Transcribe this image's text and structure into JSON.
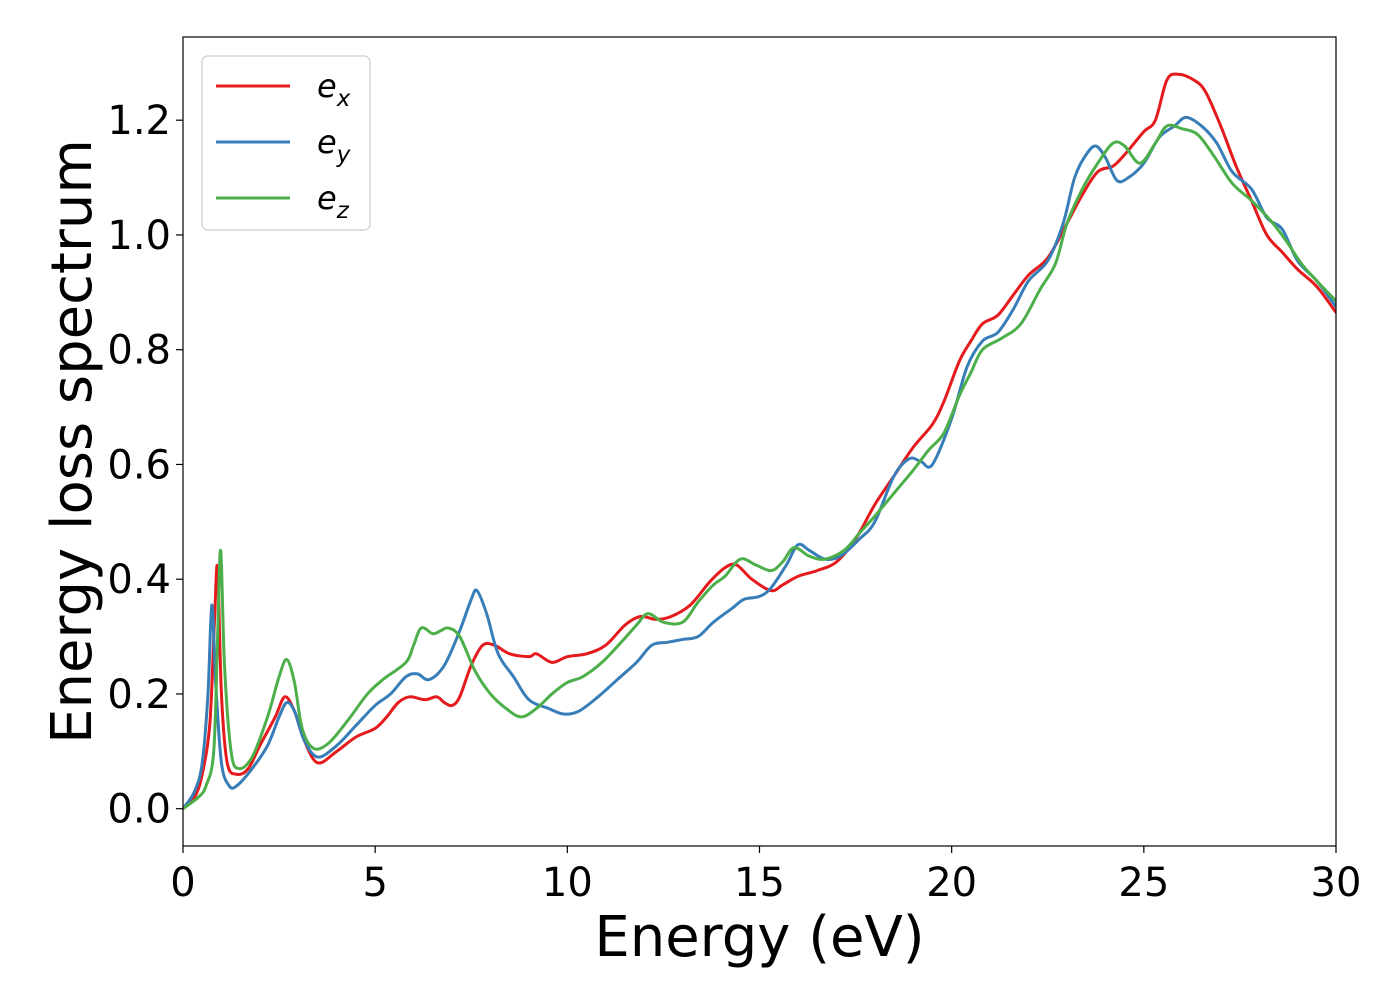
{
  "chart_data": {
    "type": "line",
    "title": "",
    "xlabel": "Energy (eV)",
    "ylabel": "Energy loss spectrum",
    "xlim": [
      0,
      30
    ],
    "ylim": [
      -0.065,
      1.345
    ],
    "xticks": [
      0,
      5,
      10,
      15,
      20,
      25,
      30
    ],
    "yticks": [
      0.0,
      0.2,
      0.4,
      0.6,
      0.8,
      1.0,
      1.2
    ],
    "xtick_labels": [
      "0",
      "5",
      "10",
      "15",
      "20",
      "25",
      "30"
    ],
    "ytick_labels": [
      "0.0",
      "0.2",
      "0.4",
      "0.6",
      "0.8",
      "1.0",
      "1.2"
    ],
    "grid": false,
    "legend_position": "top-left",
    "series": [
      {
        "name": "e_x",
        "label_base": "e",
        "label_sub": "x",
        "color": "#e41a1c",
        "points": [
          [
            0,
            0.0
          ],
          [
            0.3,
            0.02
          ],
          [
            0.5,
            0.06
          ],
          [
            0.7,
            0.15
          ],
          [
            0.82,
            0.33
          ],
          [
            0.9,
            0.42
          ],
          [
            1.0,
            0.2
          ],
          [
            1.15,
            0.08
          ],
          [
            1.4,
            0.06
          ],
          [
            1.7,
            0.07
          ],
          [
            2.0,
            0.11
          ],
          [
            2.4,
            0.16
          ],
          [
            2.65,
            0.195
          ],
          [
            2.9,
            0.17
          ],
          [
            3.15,
            0.12
          ],
          [
            3.5,
            0.08
          ],
          [
            4.0,
            0.1
          ],
          [
            4.5,
            0.125
          ],
          [
            5.0,
            0.14
          ],
          [
            5.3,
            0.16
          ],
          [
            5.6,
            0.185
          ],
          [
            5.9,
            0.195
          ],
          [
            6.3,
            0.19
          ],
          [
            6.6,
            0.195
          ],
          [
            6.8,
            0.185
          ],
          [
            7.0,
            0.18
          ],
          [
            7.2,
            0.195
          ],
          [
            7.5,
            0.25
          ],
          [
            7.8,
            0.285
          ],
          [
            8.1,
            0.285
          ],
          [
            8.5,
            0.27
          ],
          [
            9.0,
            0.265
          ],
          [
            9.2,
            0.27
          ],
          [
            9.6,
            0.255
          ],
          [
            10.0,
            0.265
          ],
          [
            10.5,
            0.27
          ],
          [
            11.0,
            0.285
          ],
          [
            11.5,
            0.32
          ],
          [
            11.9,
            0.335
          ],
          [
            12.3,
            0.33
          ],
          [
            12.7,
            0.335
          ],
          [
            13.2,
            0.355
          ],
          [
            13.7,
            0.395
          ],
          [
            14.1,
            0.42
          ],
          [
            14.4,
            0.425
          ],
          [
            14.8,
            0.4
          ],
          [
            15.3,
            0.38
          ],
          [
            15.6,
            0.39
          ],
          [
            16.0,
            0.405
          ],
          [
            16.5,
            0.415
          ],
          [
            17.0,
            0.43
          ],
          [
            17.5,
            0.47
          ],
          [
            18.0,
            0.53
          ],
          [
            18.5,
            0.58
          ],
          [
            19.0,
            0.63
          ],
          [
            19.5,
            0.67
          ],
          [
            19.8,
            0.71
          ],
          [
            20.2,
            0.78
          ],
          [
            20.5,
            0.815
          ],
          [
            20.8,
            0.845
          ],
          [
            21.2,
            0.86
          ],
          [
            21.6,
            0.895
          ],
          [
            22.0,
            0.93
          ],
          [
            22.5,
            0.96
          ],
          [
            23.0,
            1.02
          ],
          [
            23.4,
            1.07
          ],
          [
            23.8,
            1.11
          ],
          [
            24.2,
            1.12
          ],
          [
            24.5,
            1.14
          ],
          [
            25.0,
            1.18
          ],
          [
            25.3,
            1.2
          ],
          [
            25.6,
            1.27
          ],
          [
            25.9,
            1.28
          ],
          [
            26.3,
            1.27
          ],
          [
            26.6,
            1.25
          ],
          [
            27.0,
            1.19
          ],
          [
            27.4,
            1.12
          ],
          [
            27.8,
            1.06
          ],
          [
            28.2,
            1.0
          ],
          [
            28.6,
            0.97
          ],
          [
            29.0,
            0.94
          ],
          [
            29.5,
            0.91
          ],
          [
            30.0,
            0.865
          ]
        ]
      },
      {
        "name": "e_y",
        "label_base": "e",
        "label_sub": "y",
        "color": "#377eb8",
        "points": [
          [
            0,
            0.0
          ],
          [
            0.3,
            0.03
          ],
          [
            0.5,
            0.08
          ],
          [
            0.65,
            0.2
          ],
          [
            0.75,
            0.355
          ],
          [
            0.85,
            0.22
          ],
          [
            1.0,
            0.08
          ],
          [
            1.2,
            0.04
          ],
          [
            1.4,
            0.04
          ],
          [
            1.8,
            0.07
          ],
          [
            2.2,
            0.11
          ],
          [
            2.5,
            0.16
          ],
          [
            2.7,
            0.185
          ],
          [
            2.9,
            0.17
          ],
          [
            3.15,
            0.12
          ],
          [
            3.5,
            0.09
          ],
          [
            4.0,
            0.11
          ],
          [
            4.5,
            0.145
          ],
          [
            5.0,
            0.18
          ],
          [
            5.4,
            0.2
          ],
          [
            5.8,
            0.23
          ],
          [
            6.1,
            0.235
          ],
          [
            6.4,
            0.225
          ],
          [
            6.8,
            0.25
          ],
          [
            7.2,
            0.31
          ],
          [
            7.5,
            0.365
          ],
          [
            7.65,
            0.38
          ],
          [
            7.9,
            0.34
          ],
          [
            8.2,
            0.27
          ],
          [
            8.6,
            0.23
          ],
          [
            9.0,
            0.19
          ],
          [
            9.5,
            0.175
          ],
          [
            9.9,
            0.165
          ],
          [
            10.3,
            0.17
          ],
          [
            10.8,
            0.195
          ],
          [
            11.3,
            0.225
          ],
          [
            11.8,
            0.255
          ],
          [
            12.2,
            0.285
          ],
          [
            12.6,
            0.29
          ],
          [
            13.0,
            0.295
          ],
          [
            13.4,
            0.3
          ],
          [
            13.8,
            0.325
          ],
          [
            14.3,
            0.35
          ],
          [
            14.6,
            0.365
          ],
          [
            15.0,
            0.37
          ],
          [
            15.3,
            0.385
          ],
          [
            15.7,
            0.425
          ],
          [
            16.0,
            0.46
          ],
          [
            16.3,
            0.45
          ],
          [
            16.7,
            0.435
          ],
          [
            17.1,
            0.44
          ],
          [
            17.6,
            0.47
          ],
          [
            18.0,
            0.5
          ],
          [
            18.5,
            0.58
          ],
          [
            18.9,
            0.61
          ],
          [
            19.2,
            0.605
          ],
          [
            19.5,
            0.6
          ],
          [
            20.0,
            0.68
          ],
          [
            20.4,
            0.77
          ],
          [
            20.8,
            0.815
          ],
          [
            21.2,
            0.83
          ],
          [
            21.6,
            0.87
          ],
          [
            22.0,
            0.92
          ],
          [
            22.5,
            0.955
          ],
          [
            22.9,
            1.02
          ],
          [
            23.2,
            1.1
          ],
          [
            23.5,
            1.14
          ],
          [
            23.75,
            1.155
          ],
          [
            24.0,
            1.135
          ],
          [
            24.3,
            1.095
          ],
          [
            24.6,
            1.1
          ],
          [
            25.0,
            1.125
          ],
          [
            25.4,
            1.17
          ],
          [
            25.8,
            1.19
          ],
          [
            26.1,
            1.205
          ],
          [
            26.5,
            1.19
          ],
          [
            26.9,
            1.16
          ],
          [
            27.3,
            1.11
          ],
          [
            27.8,
            1.08
          ],
          [
            28.2,
            1.03
          ],
          [
            28.6,
            1.01
          ],
          [
            29.0,
            0.955
          ],
          [
            29.5,
            0.92
          ],
          [
            30.0,
            0.875
          ]
        ]
      },
      {
        "name": "e_z",
        "label_base": "e",
        "label_sub": "z",
        "color": "#4daf4a",
        "points": [
          [
            0,
            0.0
          ],
          [
            0.4,
            0.02
          ],
          [
            0.6,
            0.04
          ],
          [
            0.8,
            0.1
          ],
          [
            0.9,
            0.3
          ],
          [
            0.98,
            0.45
          ],
          [
            1.08,
            0.25
          ],
          [
            1.25,
            0.1
          ],
          [
            1.45,
            0.07
          ],
          [
            1.8,
            0.09
          ],
          [
            2.2,
            0.16
          ],
          [
            2.5,
            0.23
          ],
          [
            2.7,
            0.26
          ],
          [
            2.9,
            0.22
          ],
          [
            3.1,
            0.14
          ],
          [
            3.4,
            0.105
          ],
          [
            3.8,
            0.115
          ],
          [
            4.3,
            0.155
          ],
          [
            4.8,
            0.2
          ],
          [
            5.2,
            0.225
          ],
          [
            5.8,
            0.255
          ],
          [
            6.0,
            0.285
          ],
          [
            6.2,
            0.315
          ],
          [
            6.5,
            0.305
          ],
          [
            6.7,
            0.31
          ],
          [
            6.9,
            0.315
          ],
          [
            7.2,
            0.3
          ],
          [
            7.6,
            0.24
          ],
          [
            8.0,
            0.2
          ],
          [
            8.4,
            0.175
          ],
          [
            8.8,
            0.16
          ],
          [
            9.2,
            0.175
          ],
          [
            9.6,
            0.2
          ],
          [
            10.0,
            0.22
          ],
          [
            10.4,
            0.23
          ],
          [
            10.9,
            0.255
          ],
          [
            11.4,
            0.29
          ],
          [
            11.8,
            0.32
          ],
          [
            12.1,
            0.34
          ],
          [
            12.5,
            0.325
          ],
          [
            13.0,
            0.325
          ],
          [
            13.4,
            0.36
          ],
          [
            13.8,
            0.39
          ],
          [
            14.1,
            0.405
          ],
          [
            14.5,
            0.435
          ],
          [
            14.9,
            0.425
          ],
          [
            15.3,
            0.415
          ],
          [
            15.6,
            0.43
          ],
          [
            15.9,
            0.455
          ],
          [
            16.3,
            0.44
          ],
          [
            16.7,
            0.435
          ],
          [
            17.2,
            0.45
          ],
          [
            17.6,
            0.48
          ],
          [
            18.0,
            0.51
          ],
          [
            18.5,
            0.55
          ],
          [
            19.0,
            0.59
          ],
          [
            19.4,
            0.625
          ],
          [
            19.8,
            0.655
          ],
          [
            20.2,
            0.72
          ],
          [
            20.5,
            0.76
          ],
          [
            20.8,
            0.8
          ],
          [
            21.3,
            0.82
          ],
          [
            21.8,
            0.845
          ],
          [
            22.3,
            0.905
          ],
          [
            22.7,
            0.95
          ],
          [
            23.0,
            1.02
          ],
          [
            23.4,
            1.08
          ],
          [
            23.8,
            1.125
          ],
          [
            24.2,
            1.16
          ],
          [
            24.5,
            1.155
          ],
          [
            24.9,
            1.125
          ],
          [
            25.3,
            1.16
          ],
          [
            25.6,
            1.19
          ],
          [
            26.0,
            1.185
          ],
          [
            26.4,
            1.175
          ],
          [
            26.8,
            1.14
          ],
          [
            27.3,
            1.09
          ],
          [
            27.8,
            1.06
          ],
          [
            28.3,
            1.025
          ],
          [
            28.7,
            0.99
          ],
          [
            29.1,
            0.95
          ],
          [
            29.5,
            0.92
          ],
          [
            30.0,
            0.885
          ]
        ]
      }
    ]
  }
}
